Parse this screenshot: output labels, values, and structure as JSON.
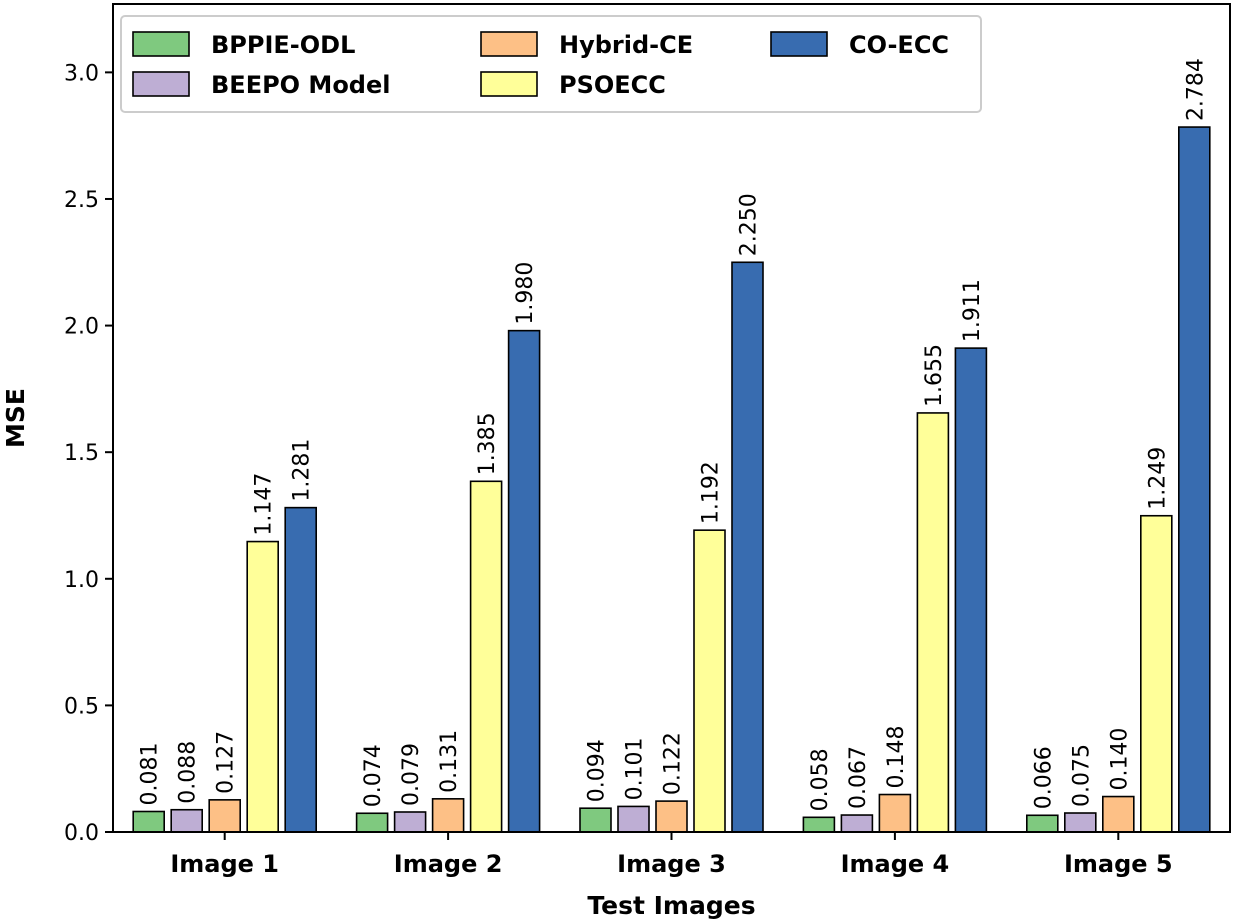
{
  "chart_data": {
    "type": "bar",
    "title": "",
    "xlabel": "Test Images",
    "ylabel": "MSE",
    "ylim": [
      0,
      3.27
    ],
    "yticks": [
      "0.0",
      "0.5",
      "1.0",
      "1.5",
      "2.0",
      "2.5",
      "3.0"
    ],
    "categories": [
      "Image 1",
      "Image 2",
      "Image 3",
      "Image 4",
      "Image 5"
    ],
    "legend_position": "top-left",
    "series": [
      {
        "name": "BPPIE-ODL",
        "color": "#7fc97f",
        "values": [
          0.081,
          0.074,
          0.094,
          0.058,
          0.066
        ],
        "labels": [
          "0.081",
          "0.074",
          "0.094",
          "0.058",
          "0.066"
        ]
      },
      {
        "name": "BEEPO Model",
        "color": "#beaed4",
        "values": [
          0.088,
          0.079,
          0.101,
          0.067,
          0.075
        ],
        "labels": [
          "0.088",
          "0.079",
          "0.101",
          "0.067",
          "0.075"
        ]
      },
      {
        "name": "Hybrid-CE",
        "color": "#fdc086",
        "values": [
          0.127,
          0.131,
          0.122,
          0.148,
          0.14
        ],
        "labels": [
          "0.127",
          "0.131",
          "0.122",
          "0.148",
          "0.140"
        ]
      },
      {
        "name": "PSOECC",
        "color": "#ffff99",
        "values": [
          1.147,
          1.385,
          1.192,
          1.655,
          1.249
        ],
        "labels": [
          "1.147",
          "1.385",
          "1.192",
          "1.655",
          "1.249"
        ]
      },
      {
        "name": "CO-ECC",
        "color": "#386cb0",
        "values": [
          1.281,
          1.98,
          2.25,
          1.911,
          2.784
        ],
        "labels": [
          "1.281",
          "1.980",
          "2.250",
          "1.911",
          "2.784"
        ]
      }
    ]
  }
}
